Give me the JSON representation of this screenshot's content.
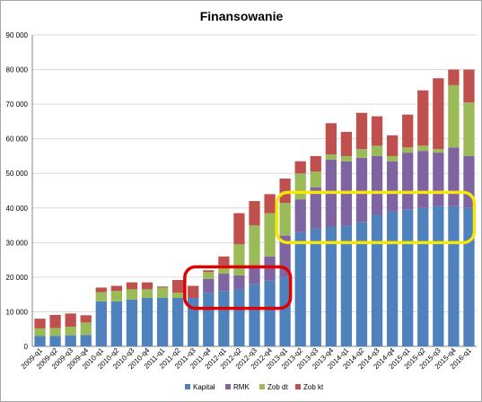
{
  "chart_data": {
    "type": "bar",
    "stacked": true,
    "title": "Finansowanie",
    "xlabel": "",
    "ylabel": "",
    "ylim": [
      0,
      90000
    ],
    "yticks": [
      0,
      10000,
      20000,
      30000,
      40000,
      50000,
      60000,
      70000,
      80000,
      90000
    ],
    "ytick_labels": [
      "0",
      "10 000",
      "20 000",
      "30 000",
      "40 000",
      "50 000",
      "60 000",
      "70 000",
      "80 000",
      "90 000"
    ],
    "grid": true,
    "legend_position": "bottom",
    "categories": [
      "2009-q1",
      "2009-q2",
      "2009-q3",
      "2009-q4",
      "2010-q1",
      "2010-q2",
      "2010-q3",
      "2010-q4",
      "2011-q1",
      "2011-q2",
      "2011-q3",
      "2011-q4",
      "2012-q1",
      "2012-q2",
      "2012-q3",
      "2012-q4",
      "2013-q1",
      "2013-q2",
      "2013-q3",
      "2013-q4",
      "2014-q1",
      "2014-q2",
      "2014-q3",
      "2014-q4",
      "2015-q1",
      "2015-q2",
      "2015-q3",
      "2015-q4",
      "2016-q1"
    ],
    "bar_labels": [
      "2009-q1",
      "2009-q2",
      "2009-q3",
      "2009-q4",
      "2010-q1",
      "2010-q2",
      "2010-q3",
      "2010-q4",
      "2011-q1",
      "2011-q2",
      "2011-q3",
      "2011-q4",
      "2012-q1",
      "2012-q2",
      "2012-q3",
      "2012-q4",
      "2013-q1",
      "2013-q2",
      "2013-q3",
      "2013-q4",
      "2014-q1",
      "2014-q2",
      "2014-q3",
      "2014-q4",
      "2015-q1",
      "2015-q2",
      "2015-q3",
      "2015-q4",
      "2016-q1"
    ],
    "series": [
      {
        "name": "Kapitał",
        "color": "#4f81bd",
        "values": [
          3000,
          3000,
          3200,
          3300,
          13000,
          13000,
          13500,
          14000,
          14000,
          14000,
          14000,
          15500,
          16000,
          16500,
          18000,
          19000,
          20000,
          33000,
          34000,
          34500,
          35000,
          36000,
          38000,
          39000,
          39500,
          40000,
          40500,
          40500,
          40000
        ]
      },
      {
        "name": "RMK",
        "color": "#8064a2",
        "values": [
          0,
          0,
          0,
          0,
          0,
          0,
          0,
          0,
          0,
          0,
          0,
          4000,
          5000,
          4000,
          5000,
          7000,
          12000,
          9500,
          12000,
          19500,
          18500,
          18500,
          17000,
          14500,
          16500,
          16500,
          15500,
          17000,
          15000
        ]
      },
      {
        "name": "Zob dt",
        "color": "#9bbb59",
        "values": [
          2200,
          2300,
          2500,
          3600,
          2700,
          3000,
          3000,
          2500,
          3000,
          1500,
          0,
          2000,
          2500,
          9000,
          12000,
          12500,
          9500,
          7500,
          4500,
          1500,
          1500,
          2500,
          3000,
          1500,
          1500,
          1500,
          1000,
          18000,
          15500
        ]
      },
      {
        "name": "Zob kt",
        "color": "#c0504d",
        "values": [
          2800,
          3800,
          3800,
          2100,
          1300,
          1500,
          2000,
          2000,
          300,
          3700,
          3500,
          500,
          2500,
          9000,
          7000,
          5500,
          7000,
          3500,
          4500,
          9000,
          7000,
          10500,
          8500,
          6000,
          9500,
          16000,
          20500,
          4500,
          9500
        ]
      }
    ],
    "annotations": [
      {
        "shape": "rounded-rectangle",
        "color": "#e00000",
        "x_range": [
          "2011-q3",
          "2013-q1"
        ],
        "y_range": [
          11000,
          23000
        ]
      },
      {
        "shape": "rounded-rectangle",
        "color": "#f5e60b",
        "x_range": [
          "2013-q1",
          "2016-q1"
        ],
        "y_range": [
          30000,
          44500
        ]
      }
    ]
  }
}
